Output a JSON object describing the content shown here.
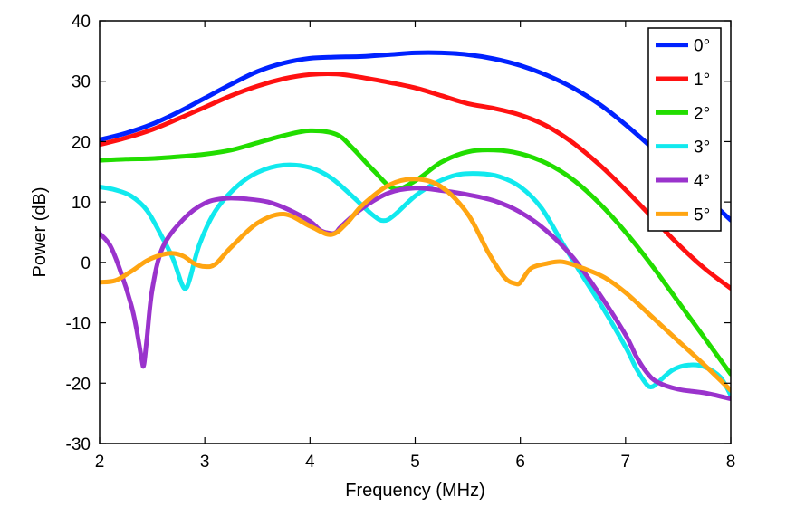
{
  "chart_data": {
    "type": "line",
    "title": "",
    "xlabel": "Frequency (MHz)",
    "ylabel": "Power (dB)",
    "xlim": [
      2,
      8
    ],
    "ylim": [
      -30,
      40
    ],
    "xticks": [
      2,
      3,
      4,
      5,
      6,
      7,
      8
    ],
    "yticks": [
      -30,
      -20,
      -10,
      0,
      10,
      20,
      30,
      40
    ],
    "grid": false,
    "legend_position": "top-right",
    "series": [
      {
        "name": "0°",
        "color": "#0022ff",
        "x": [
          2,
          2.25,
          2.5,
          2.75,
          3,
          3.25,
          3.5,
          3.75,
          4,
          4.25,
          4.5,
          4.75,
          5,
          5.25,
          5.5,
          5.75,
          6,
          6.25,
          6.5,
          6.75,
          7,
          7.25,
          7.5,
          7.75,
          8
        ],
        "y": [
          20.3,
          21.4,
          22.9,
          24.9,
          27.2,
          29.5,
          31.6,
          33.0,
          33.8,
          34.0,
          34.1,
          34.4,
          34.7,
          34.7,
          34.4,
          33.7,
          32.6,
          31.0,
          28.9,
          26.2,
          22.8,
          19.0,
          15.0,
          11.0,
          7.0
        ]
      },
      {
        "name": "1°",
        "color": "#ff1111",
        "x": [
          2,
          2.25,
          2.5,
          2.75,
          3,
          3.25,
          3.5,
          3.75,
          4,
          4.25,
          4.5,
          4.75,
          5,
          5.25,
          5.5,
          5.75,
          6,
          6.25,
          6.5,
          6.75,
          7,
          7.25,
          7.5,
          7.75,
          8
        ],
        "y": [
          19.5,
          20.6,
          22.0,
          23.8,
          25.7,
          27.6,
          29.2,
          30.4,
          31.1,
          31.2,
          30.6,
          29.8,
          28.9,
          27.6,
          26.3,
          25.5,
          24.4,
          22.6,
          19.8,
          16.2,
          12.0,
          7.5,
          3.0,
          -1.0,
          -4.3
        ]
      },
      {
        "name": "2°",
        "color": "#22dd00",
        "x": [
          2,
          2.25,
          2.5,
          2.75,
          3,
          3.25,
          3.5,
          3.75,
          4,
          4.25,
          4.4,
          4.6,
          4.8,
          5,
          5.25,
          5.5,
          5.75,
          6,
          6.25,
          6.5,
          6.75,
          7,
          7.25,
          7.5,
          7.75,
          8
        ],
        "y": [
          16.9,
          17.1,
          17.2,
          17.5,
          17.9,
          18.6,
          19.8,
          21.0,
          21.8,
          21.2,
          19.0,
          15.3,
          12.2,
          13.5,
          16.6,
          18.3,
          18.6,
          18.0,
          16.4,
          13.7,
          9.8,
          5.0,
          -0.5,
          -6.5,
          -12.5,
          -18.5
        ]
      },
      {
        "name": "3°",
        "color": "#11e9ee",
        "x": [
          2,
          2.15,
          2.3,
          2.45,
          2.6,
          2.7,
          2.78,
          2.82,
          2.86,
          2.95,
          3.1,
          3.3,
          3.5,
          3.75,
          4,
          4.2,
          4.4,
          4.6,
          4.7,
          4.8,
          5,
          5.2,
          5.4,
          5.6,
          5.8,
          6,
          6.2,
          6.4,
          6.6,
          6.8,
          7,
          7.1,
          7.2,
          7.25,
          7.3,
          7.45,
          7.6,
          7.75,
          7.9,
          8
        ],
        "y": [
          12.5,
          12.0,
          11.0,
          8.6,
          4.0,
          0.5,
          -3.5,
          -4.3,
          -2.6,
          3.0,
          8.5,
          12.5,
          14.9,
          16.1,
          15.7,
          14.0,
          11.0,
          7.8,
          6.9,
          7.8,
          11.0,
          13.2,
          14.5,
          14.7,
          14.2,
          12.5,
          9.0,
          3.2,
          -2.5,
          -8.0,
          -14.0,
          -17.5,
          -20.2,
          -20.6,
          -20.0,
          -17.8,
          -17.0,
          -17.3,
          -19.0,
          -22.0
        ]
      },
      {
        "name": "4°",
        "color": "#9a33cc",
        "x": [
          2,
          2.1,
          2.2,
          2.3,
          2.35,
          2.4,
          2.42,
          2.45,
          2.5,
          2.6,
          2.8,
          3,
          3.2,
          3.4,
          3.6,
          3.8,
          4,
          4.1,
          4.2,
          4.25,
          4.3,
          4.5,
          4.75,
          5,
          5.25,
          5.5,
          5.75,
          6,
          6.25,
          6.5,
          6.75,
          7,
          7.1,
          7.2,
          7.3,
          7.5,
          7.75,
          8
        ],
        "y": [
          4.8,
          2.8,
          -1.5,
          -7.0,
          -11.0,
          -16.0,
          -17.0,
          -12.5,
          -4.5,
          2.5,
          7.2,
          9.8,
          10.6,
          10.5,
          10.0,
          8.7,
          6.8,
          5.3,
          4.8,
          5.0,
          6.0,
          9.0,
          11.5,
          12.3,
          11.9,
          11.2,
          10.2,
          8.3,
          5.2,
          0.8,
          -5.2,
          -12.0,
          -15.5,
          -18.2,
          -19.8,
          -21.0,
          -21.6,
          -22.6
        ]
      },
      {
        "name": "5°",
        "color": "#ffa512",
        "x": [
          2,
          2.15,
          2.3,
          2.45,
          2.6,
          2.7,
          2.8,
          2.9,
          3,
          3.1,
          3.25,
          3.5,
          3.75,
          4,
          4.2,
          4.35,
          4.5,
          4.75,
          5,
          5.25,
          5.5,
          5.7,
          5.85,
          5.95,
          6,
          6.1,
          6.25,
          6.4,
          6.6,
          6.8,
          7,
          7.25,
          7.5,
          7.75,
          8
        ],
        "y": [
          -3.3,
          -3.0,
          -1.5,
          0.3,
          1.3,
          1.5,
          1.0,
          -0.2,
          -0.7,
          -0.3,
          2.5,
          6.5,
          8.0,
          6.0,
          4.6,
          6.5,
          9.5,
          12.8,
          13.8,
          12.5,
          8.0,
          1.5,
          -2.5,
          -3.5,
          -3.3,
          -1.0,
          -0.2,
          0.1,
          -1.0,
          -2.5,
          -5.0,
          -9.0,
          -13.0,
          -17.0,
          -21.2
        ]
      }
    ]
  }
}
